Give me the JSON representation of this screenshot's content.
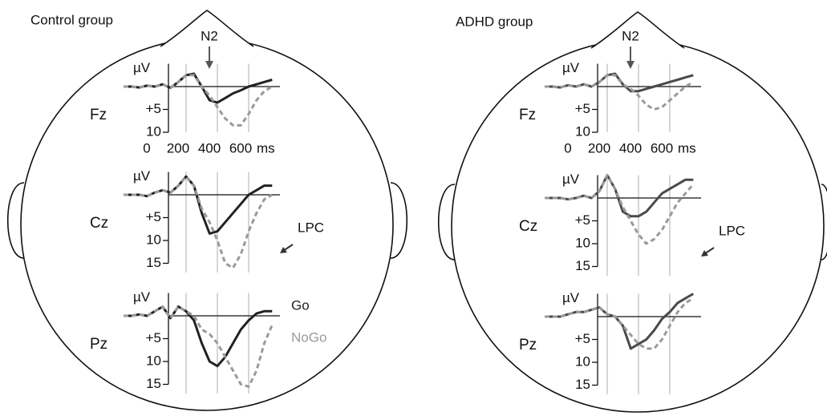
{
  "figure": {
    "groups": [
      "Control group",
      "ADHD group"
    ]
  },
  "chart_data": [
    {
      "type": "line",
      "group": 0,
      "label": "Fz",
      "ylabel": "µV",
      "xlabel": "ms",
      "x": [
        -200,
        -150,
        -100,
        -50,
        0,
        50,
        100,
        150,
        200,
        250,
        300,
        350,
        400,
        450,
        500,
        550,
        600,
        650,
        700,
        750
      ],
      "xlim": [
        -200,
        800
      ],
      "xticks": [
        0,
        200,
        400,
        600
      ],
      "vlines": [
        200,
        400,
        600
      ],
      "ylim": [
        -5,
        10
      ],
      "y_inverted": true,
      "yticks": [
        {
          "value": 5,
          "label": "+5"
        },
        10
      ],
      "annotation": {
        "text": "N2",
        "x": 400
      },
      "series": [
        {
          "name": "Go",
          "color": "#222222",
          "dashed": false,
          "values": [
            0,
            0,
            0.2,
            -0.2,
            0,
            -0.5,
            0.3,
            -1,
            -2.5,
            -2.8,
            0,
            3,
            3.5,
            2.5,
            1.5,
            0.8,
            0,
            -0.5,
            -1,
            -1.5
          ]
        },
        {
          "name": "NoGo",
          "color": "#9a9a9a",
          "dashed": true,
          "values": [
            0,
            0,
            0.2,
            -0.2,
            0,
            -0.5,
            0.3,
            -1,
            -2.5,
            -2.5,
            0,
            2,
            4.5,
            7,
            8.5,
            8.5,
            6,
            3,
            1,
            0
          ]
        }
      ]
    },
    {
      "type": "line",
      "group": 0,
      "label": "Cz",
      "ylabel": "µV",
      "x": [
        -200,
        -150,
        -100,
        -50,
        0,
        50,
        100,
        150,
        200,
        250,
        300,
        350,
        400,
        450,
        500,
        550,
        600,
        650,
        700,
        750
      ],
      "xlim": [
        -200,
        800
      ],
      "vlines": [
        200,
        400,
        600
      ],
      "ylim": [
        -5,
        17
      ],
      "y_inverted": true,
      "yticks": [
        {
          "value": 5,
          "label": "+5"
        },
        10,
        15
      ],
      "annotation": {
        "text": "LPC"
      },
      "series": [
        {
          "name": "Go",
          "color": "#222222",
          "dashed": false,
          "values": [
            0,
            0,
            0,
            0.3,
            -0.5,
            -1,
            -0.5,
            -2,
            -4,
            -2,
            4,
            8.5,
            8,
            6,
            4,
            2,
            0,
            -1,
            -2,
            -2
          ]
        },
        {
          "name": "NoGo",
          "color": "#9a9a9a",
          "dashed": true,
          "values": [
            0,
            0,
            0,
            0.3,
            -0.5,
            -1,
            -0.5,
            -2,
            -4,
            -2,
            3,
            6,
            10,
            15,
            16,
            13,
            8,
            4,
            1,
            0
          ]
        }
      ]
    },
    {
      "type": "line",
      "group": 0,
      "label": "Pz",
      "ylabel": "µV",
      "legend": true,
      "x": [
        -200,
        -150,
        -100,
        -50,
        0,
        50,
        100,
        150,
        200,
        250,
        300,
        350,
        400,
        450,
        500,
        550,
        600,
        650,
        700,
        750
      ],
      "xlim": [
        -200,
        800
      ],
      "vlines": [
        200,
        400,
        600
      ],
      "ylim": [
        -5,
        17
      ],
      "y_inverted": true,
      "yticks": [
        {
          "value": 5,
          "label": "+5"
        },
        10,
        15
      ],
      "series": [
        {
          "name": "Go",
          "color": "#222222",
          "dashed": false,
          "values": [
            0,
            0,
            -0.3,
            0,
            -1,
            -2,
            0.5,
            -2,
            -1,
            1,
            6,
            10,
            11,
            9,
            6,
            3,
            1,
            -0.5,
            -1,
            -1
          ]
        },
        {
          "name": "NoGo",
          "color": "#9a9a9a",
          "dashed": true,
          "values": [
            0,
            0,
            -0.3,
            0,
            -1,
            -2,
            0.5,
            -2,
            -1,
            0,
            3,
            4,
            6,
            9,
            12,
            15,
            15.5,
            12,
            6,
            2
          ]
        }
      ]
    },
    {
      "type": "line",
      "group": 1,
      "label": "Fz",
      "ylabel": "µV",
      "xlabel": "ms",
      "x": [
        -200,
        -150,
        -100,
        -50,
        0,
        50,
        100,
        150,
        200,
        250,
        300,
        350,
        400,
        450,
        500,
        550,
        600,
        650,
        700,
        750
      ],
      "xlim": [
        -200,
        800
      ],
      "xticks": [
        0,
        200,
        400,
        600
      ],
      "vlines": [
        200,
        400,
        600
      ],
      "ylim": [
        -5,
        10
      ],
      "y_inverted": true,
      "yticks": [
        {
          "value": 5,
          "label": "+5"
        },
        10
      ],
      "annotation": {
        "text": "N2",
        "x": 400
      },
      "series": [
        {
          "name": "Go",
          "color": "#4a4a4a",
          "dashed": false,
          "values": [
            0,
            0,
            0.2,
            -0.3,
            0,
            -0.5,
            0,
            -1,
            -2.5,
            -2.8,
            -0.5,
            1,
            1,
            0.5,
            0,
            -0.5,
            -1,
            -1.5,
            -2,
            -2.5
          ]
        },
        {
          "name": "NoGo",
          "color": "#9a9a9a",
          "dashed": true,
          "values": [
            0,
            0,
            0.2,
            -0.3,
            0,
            -0.5,
            0,
            -1,
            -2.5,
            -2.5,
            -0.5,
            0.5,
            2,
            4,
            5,
            4.5,
            3,
            1.5,
            0,
            -1
          ]
        }
      ]
    },
    {
      "type": "line",
      "group": 1,
      "label": "Cz",
      "ylabel": "µV",
      "x": [
        -200,
        -150,
        -100,
        -50,
        0,
        50,
        100,
        150,
        200,
        250,
        300,
        350,
        400,
        450,
        500,
        550,
        600,
        650,
        700,
        750
      ],
      "xlim": [
        -200,
        800
      ],
      "vlines": [
        200,
        400,
        600
      ],
      "ylim": [
        -5,
        17
      ],
      "y_inverted": true,
      "yticks": [
        {
          "value": 5,
          "label": "+5"
        },
        10,
        15
      ],
      "annotation": {
        "text": "LPC"
      },
      "series": [
        {
          "name": "Go",
          "color": "#4a4a4a",
          "dashed": false,
          "values": [
            0,
            0,
            0,
            0.3,
            0,
            -0.5,
            0,
            -1.5,
            -5,
            -2,
            3,
            4,
            4,
            3,
            1,
            -1,
            -2,
            -3,
            -4,
            -4
          ]
        },
        {
          "name": "NoGo",
          "color": "#9a9a9a",
          "dashed": true,
          "values": [
            0,
            0,
            0,
            0.3,
            0,
            -0.5,
            0,
            -1.5,
            -5,
            -2,
            2,
            5,
            8,
            10,
            9,
            7,
            4,
            1,
            -1,
            -3
          ]
        }
      ]
    },
    {
      "type": "line",
      "group": 1,
      "label": "Pz",
      "ylabel": "µV",
      "x": [
        -200,
        -150,
        -100,
        -50,
        0,
        50,
        100,
        150,
        200,
        250,
        300,
        350,
        400,
        450,
        500,
        550,
        600,
        650,
        700,
        750
      ],
      "xlim": [
        -200,
        800
      ],
      "vlines": [
        200,
        400,
        600
      ],
      "ylim": [
        -5,
        17
      ],
      "y_inverted": true,
      "yticks": [
        {
          "value": 5,
          "label": "+5"
        },
        10,
        15
      ],
      "series": [
        {
          "name": "Go",
          "color": "#4a4a4a",
          "dashed": false,
          "values": [
            0,
            0,
            0,
            -0.5,
            -1,
            -1,
            -1.5,
            -2,
            -0.5,
            0,
            2,
            7,
            6,
            5,
            3,
            0.5,
            -1,
            -3,
            -4,
            -5
          ]
        },
        {
          "name": "NoGo",
          "color": "#9a9a9a",
          "dashed": true,
          "values": [
            0,
            0,
            0,
            -0.5,
            -1,
            -1,
            -1.5,
            -2,
            -0.5,
            0,
            2,
            4,
            6,
            7,
            7,
            5,
            2,
            -1,
            -3,
            -4
          ]
        }
      ]
    }
  ]
}
